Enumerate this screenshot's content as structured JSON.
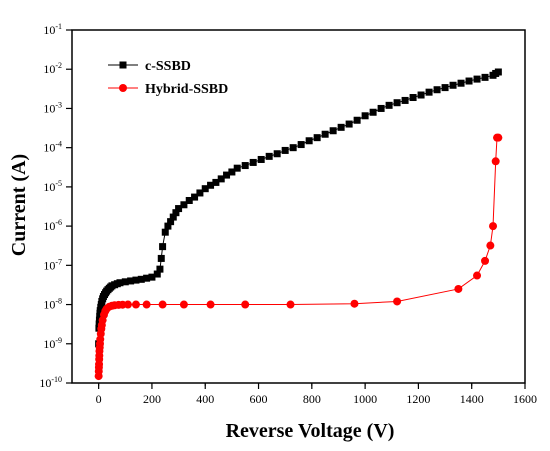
{
  "chart_data": {
    "type": "scatter",
    "xlabel": "Reverse Voltage (V)",
    "ylabel": "Current (A)",
    "xlim": [
      -100,
      1600
    ],
    "ylim": [
      1e-10,
      0.1
    ],
    "yscale": "log",
    "x_ticks": [
      {
        "value": 0,
        "label": "0"
      },
      {
        "value": 200,
        "label": "200"
      },
      {
        "value": 400,
        "label": "400"
      },
      {
        "value": 600,
        "label": "600"
      },
      {
        "value": 800,
        "label": "800"
      },
      {
        "value": 1000,
        "label": "1000"
      },
      {
        "value": 1200,
        "label": "1200"
      },
      {
        "value": 1400,
        "label": "1400"
      },
      {
        "value": 1600,
        "label": "1600"
      }
    ],
    "y_ticks": [
      {
        "exp": -10,
        "base": "10",
        "sup": "-10"
      },
      {
        "exp": -9,
        "base": "10",
        "sup": "-9"
      },
      {
        "exp": -8,
        "base": "10",
        "sup": "-8"
      },
      {
        "exp": -7,
        "base": "10",
        "sup": "-7"
      },
      {
        "exp": -6,
        "base": "10",
        "sup": "-6"
      },
      {
        "exp": -5,
        "base": "10",
        "sup": "-5"
      },
      {
        "exp": -4,
        "base": "10",
        "sup": "-4"
      },
      {
        "exp": -3,
        "base": "10",
        "sup": "-3"
      },
      {
        "exp": -2,
        "base": "10",
        "sup": "-2"
      },
      {
        "exp": -1,
        "base": "10",
        "sup": "-1"
      }
    ],
    "grid": false,
    "legend_position": "top-left",
    "series": [
      {
        "name": "c-SSBD",
        "color": "#000000",
        "marker": "square",
        "x": [
          0,
          1,
          2,
          3,
          4,
          5,
          6,
          8,
          10,
          12,
          15,
          18,
          22,
          26,
          30,
          35,
          40,
          45,
          50,
          60,
          70,
          80,
          100,
          120,
          140,
          160,
          180,
          200,
          220,
          230,
          235,
          240,
          250,
          260,
          270,
          280,
          290,
          300,
          320,
          340,
          360,
          380,
          400,
          420,
          440,
          460,
          480,
          500,
          520,
          550,
          580,
          610,
          640,
          670,
          700,
          730,
          760,
          790,
          820,
          850,
          880,
          910,
          940,
          970,
          1000,
          1030,
          1060,
          1090,
          1120,
          1150,
          1180,
          1210,
          1240,
          1270,
          1300,
          1330,
          1360,
          1390,
          1420,
          1450,
          1480,
          1490,
          1500
        ],
        "y": [
          1e-09,
          2.5e-09,
          3.2e-09,
          4e-09,
          5e-09,
          6e-09,
          7e-09,
          8.5e-09,
          1e-08,
          1.2e-08,
          1.4e-08,
          1.6e-08,
          1.8e-08,
          2e-08,
          2.2e-08,
          2.4e-08,
          2.6e-08,
          2.8e-08,
          3e-08,
          3.2e-08,
          3.4e-08,
          3.6e-08,
          3.8e-08,
          4e-08,
          4.2e-08,
          4.4e-08,
          4.7e-08,
          5e-08,
          6e-08,
          8e-08,
          1.5e-07,
          3e-07,
          7e-07,
          1e-06,
          1.3e-06,
          1.7e-06,
          2.2e-06,
          2.8e-06,
          3.5e-06,
          4.5e-06,
          5.5e-06,
          7e-06,
          9e-06,
          1.1e-05,
          1.3e-05,
          1.6e-05,
          2e-05,
          2.4e-05,
          3e-05,
          3.5e-05,
          4.2e-05,
          5e-05,
          6e-05,
          7e-05,
          8.5e-05,
          0.0001,
          0.00012,
          0.00015,
          0.00018,
          0.00022,
          0.00027,
          0.00033,
          0.0004,
          0.0005,
          0.00065,
          0.0008,
          0.001,
          0.0012,
          0.0014,
          0.0016,
          0.0019,
          0.0022,
          0.0026,
          0.003,
          0.0034,
          0.0039,
          0.0044,
          0.005,
          0.0056,
          0.0062,
          0.007,
          0.0078,
          0.0085
        ]
      },
      {
        "name": "Hybrid-SSBD",
        "color": "#ff0000",
        "marker": "circle",
        "x": [
          0,
          0.5,
          1,
          1.5,
          2,
          2.5,
          3,
          4,
          5,
          6,
          8,
          10,
          12,
          15,
          20,
          25,
          30,
          40,
          50,
          60,
          75,
          90,
          110,
          140,
          180,
          240,
          320,
          420,
          550,
          720,
          960,
          1120,
          1350,
          1420,
          1450,
          1470,
          1480,
          1490,
          1495,
          1500
        ],
        "y": [
          1.5e-10,
          2e-10,
          2.5e-10,
          3e-10,
          4e-10,
          5e-10,
          6.5e-10,
          8e-10,
          1e-09,
          1.3e-09,
          1.8e-09,
          2.4e-09,
          3e-09,
          4e-09,
          5.5e-09,
          6.8e-09,
          7.8e-09,
          8.8e-09,
          9.3e-09,
          9.6e-09,
          9.8e-09,
          9.9e-09,
          1e-08,
          1e-08,
          1e-08,
          1e-08,
          1e-08,
          1e-08,
          1e-08,
          1e-08,
          1.05e-08,
          1.2e-08,
          2.5e-08,
          5.5e-08,
          1.3e-07,
          3.2e-07,
          1e-06,
          4.5e-05,
          0.00018,
          0.00018
        ]
      }
    ]
  }
}
